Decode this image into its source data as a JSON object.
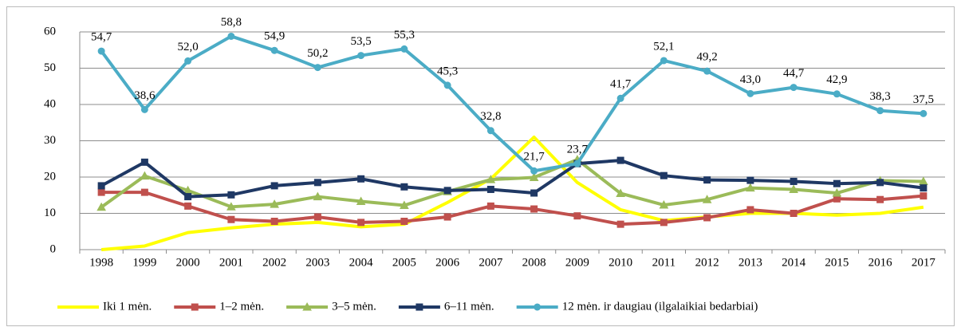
{
  "chart_data": {
    "type": "line",
    "categories": [
      "1998",
      "1999",
      "2000",
      "2001",
      "2002",
      "2003",
      "2004",
      "2005",
      "2006",
      "2007",
      "2008",
      "2009",
      "2010",
      "2011",
      "2012",
      "2013",
      "2014",
      "2015",
      "2016",
      "2017"
    ],
    "series": [
      {
        "name": "Iki 1 mėn.",
        "color": "#ffff00",
        "marker": "none",
        "values": [
          0,
          1,
          4.7,
          6,
          7,
          7.5,
          6.3,
          7,
          13,
          19.5,
          31,
          18.5,
          11,
          8,
          9,
          10,
          10,
          9.5,
          10,
          11.7
        ]
      },
      {
        "name": "1–2 mėn.",
        "color": "#c0504d",
        "marker": "square",
        "values": [
          15.8,
          15.8,
          12,
          8.3,
          7.8,
          9,
          7.5,
          7.8,
          9,
          12,
          11.2,
          9.3,
          7,
          7.5,
          8.8,
          11,
          10,
          14,
          13.8,
          14.8
        ]
      },
      {
        "name": "3–5 mėn.",
        "color": "#9bbb59",
        "marker": "triangle",
        "values": [
          11.7,
          20.3,
          16.3,
          11.8,
          12.5,
          14.6,
          13.3,
          12.2,
          16,
          19.3,
          19.9,
          24.8,
          15.5,
          12.3,
          13.8,
          17,
          16.6,
          15.6,
          19,
          18.8
        ]
      },
      {
        "name": "6–11 mėn.",
        "color": "#1f3864",
        "marker": "square",
        "values": [
          17.6,
          24.1,
          14.6,
          15.1,
          17.6,
          18.5,
          19.5,
          17.3,
          16.3,
          16.6,
          15.6,
          23.7,
          24.6,
          20.4,
          19.2,
          19.1,
          18.8,
          18.2,
          18.5,
          17
        ]
      },
      {
        "name": "12 mėn. ir daugiau (ilgalaikiai bedarbiai)",
        "color": "#4bacc6",
        "marker": "circle",
        "values": [
          54.7,
          38.6,
          52.0,
          58.8,
          54.9,
          50.2,
          53.5,
          55.3,
          45.3,
          32.8,
          21.7,
          23.7,
          41.7,
          52.1,
          49.2,
          43.0,
          44.7,
          42.9,
          38.3,
          37.5
        ],
        "value_labels": [
          "54,7",
          "38,6",
          "52,0",
          "58,8",
          "54,9",
          "50,2",
          "53,5",
          "55,3",
          "45,3",
          "32,8",
          "21,7",
          "23,7",
          "41,7",
          "52,1",
          "49,2",
          "43,0",
          "44,7",
          "42,9",
          "38,3",
          "37,5"
        ]
      }
    ],
    "ylim": [
      0,
      60
    ],
    "yticks": [
      0,
      10,
      20,
      30,
      40,
      50,
      60
    ],
    "grid": true,
    "legend": "bottom"
  }
}
